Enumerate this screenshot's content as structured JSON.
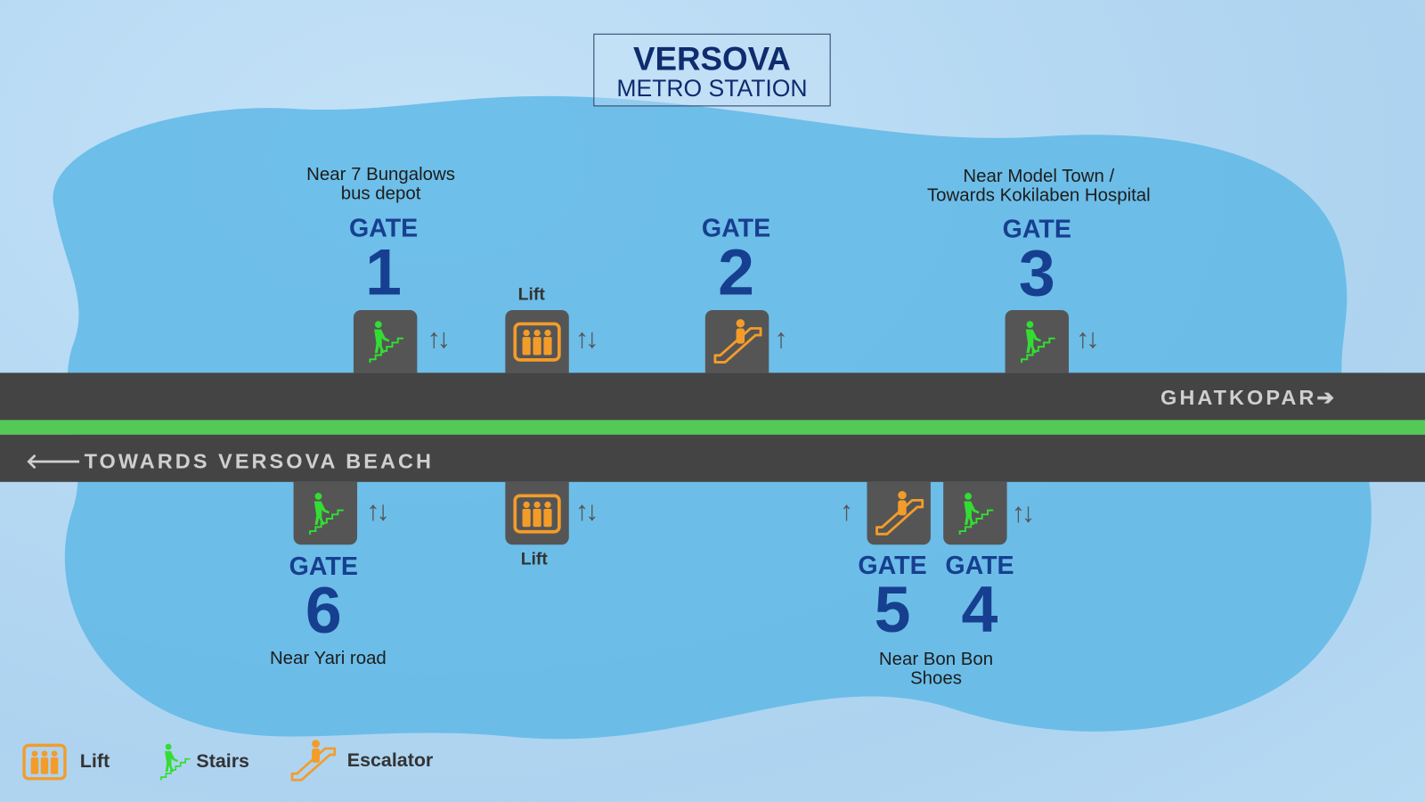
{
  "title": {
    "line1": "VERSOVA",
    "line2": "METRO STATION"
  },
  "directions": {
    "east": "GHATKOPAR",
    "west": "TOWARDS VERSOVA BEACH"
  },
  "gates": {
    "g1": {
      "label": "GATE",
      "number": "1",
      "note": "Near 7 Bungalows\nbus depot",
      "access": "stairs",
      "arrows": "↑↓"
    },
    "g2": {
      "label": "GATE",
      "number": "2",
      "access": "escalator",
      "arrows": "↑"
    },
    "g3": {
      "label": "GATE",
      "number": "3",
      "note": "Near Model Town /\nTowards Kokilaben Hospital",
      "access": "stairs",
      "arrows": "↑↓"
    },
    "g4": {
      "label": "GATE",
      "number": "4",
      "access": "stairs",
      "arrows": "↑↓"
    },
    "g5": {
      "label": "GATE",
      "number": "5",
      "access": "escalator",
      "arrows": "↑"
    },
    "g6": {
      "label": "GATE",
      "number": "6",
      "note": "Near Yari road",
      "access": "stairs",
      "arrows": "↑↓"
    },
    "g45_note": "Near Bon Bon\nShoes"
  },
  "lifts": {
    "north": {
      "label": "Lift",
      "arrows": "↑↓"
    },
    "south": {
      "label": "Lift",
      "arrows": "↑↓"
    }
  },
  "legend": {
    "lift": "Lift",
    "stairs": "Stairs",
    "escalator": "Escalator"
  },
  "colors": {
    "stairs": "#33dd33",
    "lift": "#f39c2a",
    "escalator": "#f39c2a",
    "band": "#444444",
    "line": "#55c955",
    "gate_text": "#173f8f"
  }
}
